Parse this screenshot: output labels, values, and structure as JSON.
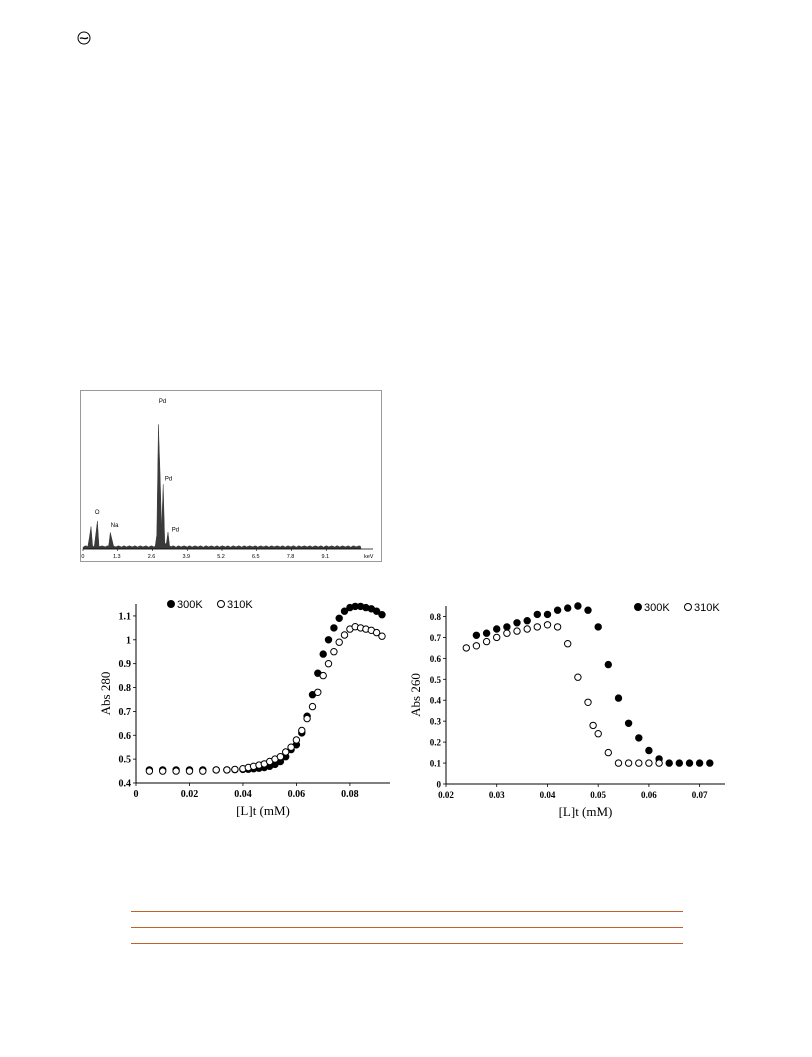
{
  "publisher_logo_icon": "circled-wave-icon",
  "edx_spectrum": {
    "type": "area",
    "x_unit": "keV",
    "x_ticks": [
      "0",
      "1.3",
      "2.6",
      "3.9",
      "5.2",
      "6.5",
      "7.8",
      "9.1"
    ],
    "x_range": [
      0,
      10.4
    ],
    "peaks": [
      {
        "label": "",
        "x": 0.28,
        "height": 0.17
      },
      {
        "label": "O",
        "x": 0.52,
        "height": 0.22
      },
      {
        "label": "Na",
        "x": 1.04,
        "height": 0.13
      },
      {
        "label": "Pd",
        "x": 2.84,
        "height": 0.98
      },
      {
        "label": "Pd",
        "x": 2.99,
        "height": 0.45
      },
      {
        "label": "Pd",
        "x": 3.17,
        "height": 0.1
      }
    ],
    "fill_color": "#3a3a3a"
  },
  "chart_data": [
    {
      "type": "scatter",
      "xlabel": "[L]t (mM)",
      "ylabel": "Abs 280",
      "xlim": [
        0,
        0.095
      ],
      "ylim": [
        0.4,
        1.15
      ],
      "x_ticks": [
        "0",
        "0.02",
        "0.04",
        "0.06",
        "0.08"
      ],
      "y_ticks": [
        "0.4",
        "0.5",
        "0.6",
        "0.7",
        "0.8",
        "0.9",
        "1",
        "1.1"
      ],
      "legend_position": "top",
      "series": [
        {
          "name": "300K",
          "marker": "filled",
          "x": [
            0.005,
            0.01,
            0.015,
            0.02,
            0.025,
            0.03,
            0.034,
            0.037,
            0.04,
            0.042,
            0.044,
            0.046,
            0.048,
            0.05,
            0.052,
            0.054,
            0.056,
            0.058,
            0.06,
            0.062,
            0.064,
            0.066,
            0.068,
            0.07,
            0.072,
            0.074,
            0.076,
            0.078,
            0.08,
            0.082,
            0.084,
            0.086,
            0.088,
            0.09,
            0.092
          ],
          "y": [
            0.455,
            0.455,
            0.455,
            0.455,
            0.455,
            0.455,
            0.455,
            0.456,
            0.457,
            0.458,
            0.46,
            0.462,
            0.465,
            0.47,
            0.478,
            0.49,
            0.51,
            0.54,
            0.56,
            0.61,
            0.68,
            0.77,
            0.86,
            0.94,
            1.0,
            1.05,
            1.09,
            1.12,
            1.135,
            1.14,
            1.14,
            1.135,
            1.13,
            1.12,
            1.105
          ]
        },
        {
          "name": "310K",
          "marker": "open",
          "x": [
            0.005,
            0.01,
            0.015,
            0.02,
            0.025,
            0.03,
            0.034,
            0.037,
            0.04,
            0.042,
            0.044,
            0.046,
            0.048,
            0.05,
            0.052,
            0.054,
            0.056,
            0.058,
            0.06,
            0.062,
            0.064,
            0.066,
            0.068,
            0.07,
            0.072,
            0.074,
            0.076,
            0.078,
            0.08,
            0.082,
            0.084,
            0.086,
            0.088,
            0.09,
            0.092
          ],
          "y": [
            0.45,
            0.45,
            0.45,
            0.45,
            0.45,
            0.455,
            0.455,
            0.457,
            0.46,
            0.465,
            0.47,
            0.475,
            0.48,
            0.49,
            0.5,
            0.51,
            0.53,
            0.55,
            0.58,
            0.62,
            0.67,
            0.72,
            0.78,
            0.85,
            0.9,
            0.95,
            0.99,
            1.02,
            1.045,
            1.055,
            1.05,
            1.045,
            1.04,
            1.03,
            1.015
          ]
        }
      ]
    },
    {
      "type": "scatter",
      "xlabel": "[L]t (mM)",
      "ylabel": "Abs 260",
      "xlim": [
        0.02,
        0.075
      ],
      "ylim": [
        0,
        0.85
      ],
      "x_ticks": [
        "0.02",
        "0.03",
        "0.04",
        "0.05",
        "0.06",
        "0.07"
      ],
      "y_ticks": [
        "0",
        "0.1",
        "0.2",
        "0.3",
        "0.4",
        "0.5",
        "0.6",
        "0.7",
        "0.8"
      ],
      "legend_position": "top-right",
      "series": [
        {
          "name": "300K",
          "marker": "filled",
          "x": [
            0.026,
            0.028,
            0.03,
            0.032,
            0.034,
            0.036,
            0.038,
            0.04,
            0.042,
            0.044,
            0.046,
            0.048,
            0.05,
            0.052,
            0.054,
            0.056,
            0.058,
            0.06,
            0.062,
            0.064,
            0.066,
            0.068,
            0.07,
            0.072
          ],
          "y": [
            0.71,
            0.72,
            0.74,
            0.75,
            0.77,
            0.78,
            0.81,
            0.81,
            0.83,
            0.84,
            0.85,
            0.83,
            0.75,
            0.57,
            0.41,
            0.29,
            0.22,
            0.16,
            0.12,
            0.1,
            0.1,
            0.1,
            0.1,
            0.1
          ]
        },
        {
          "name": "310K",
          "marker": "open",
          "x": [
            0.024,
            0.026,
            0.028,
            0.03,
            0.032,
            0.034,
            0.036,
            0.038,
            0.04,
            0.042,
            0.044,
            0.046,
            0.048,
            0.049,
            0.05,
            0.052,
            0.054,
            0.056,
            0.058,
            0.06,
            0.062
          ],
          "y": [
            0.65,
            0.66,
            0.68,
            0.7,
            0.72,
            0.73,
            0.74,
            0.75,
            0.76,
            0.75,
            0.67,
            0.51,
            0.39,
            0.28,
            0.24,
            0.15,
            0.1,
            0.1,
            0.1,
            0.1,
            0.1
          ]
        }
      ]
    }
  ]
}
